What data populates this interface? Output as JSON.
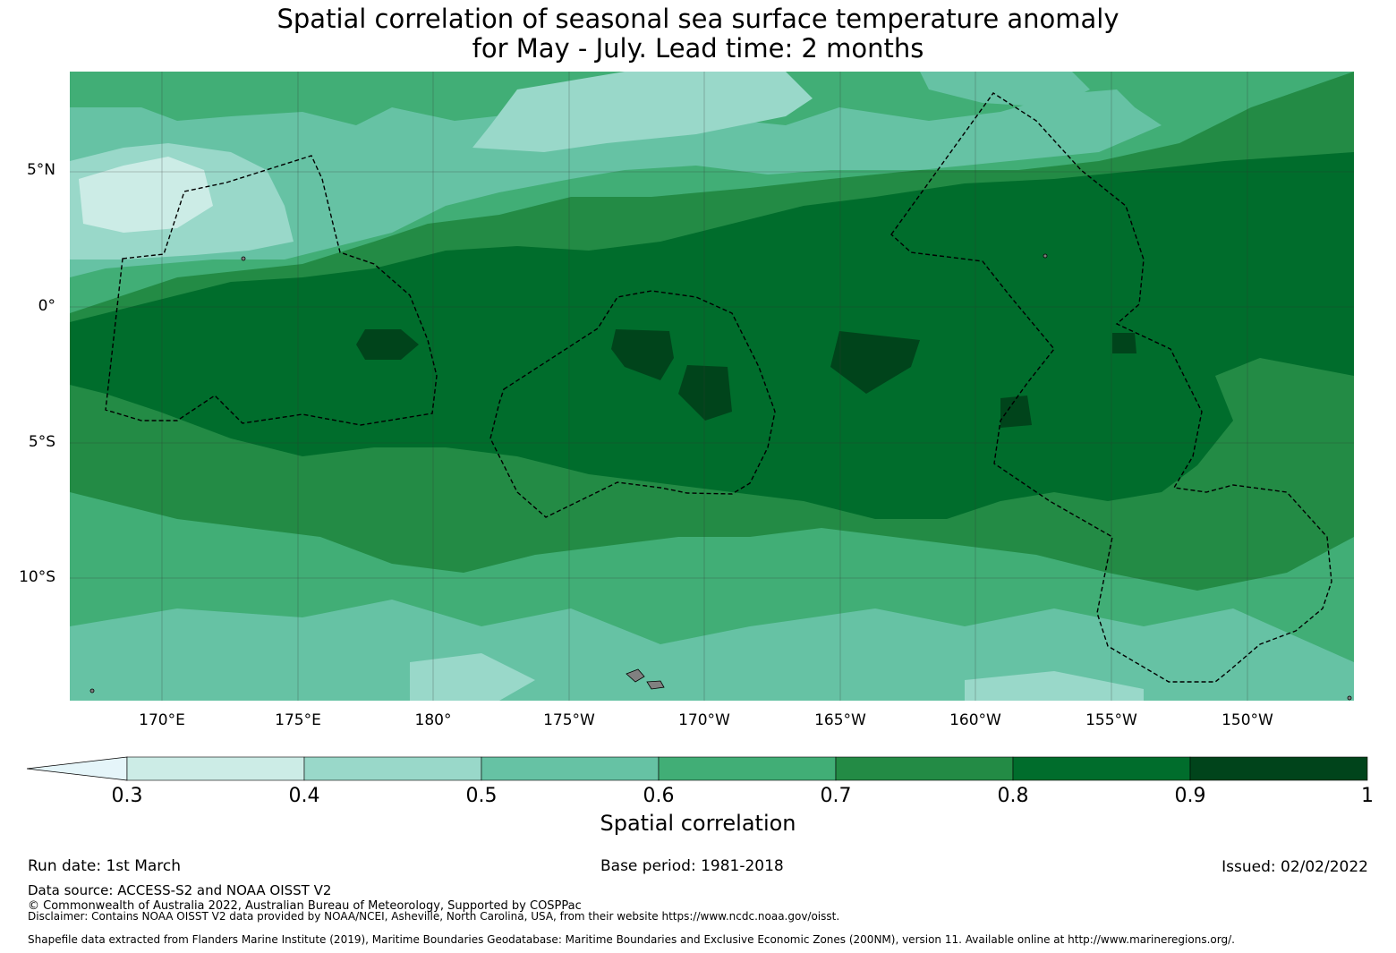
{
  "title": {
    "line1": "Spatial correlation of seasonal sea surface temperature anomaly",
    "line2": "for May - July. Lead time: 2 months"
  },
  "axes": {
    "lat_labels": [
      "5°N",
      "0°",
      "5°S",
      "10°S"
    ],
    "lon_labels": [
      "170°E",
      "175°E",
      "180°",
      "175°W",
      "170°W",
      "165°W",
      "160°W",
      "155°W",
      "150°W"
    ]
  },
  "colorbar": {
    "label": "Spatial correlation",
    "ticks": [
      "0.3",
      "0.4",
      "0.5",
      "0.6",
      "0.7",
      "0.8",
      "0.9",
      "1"
    ],
    "extend_color": "#e5f5f9",
    "colors": [
      "#ccece6",
      "#99d8c9",
      "#66c2a4",
      "#41ae76",
      "#238b45",
      "#006d2c",
      "#00441b"
    ]
  },
  "footer": {
    "run_date": "Run date: 1st March",
    "base_period": "Base period: 1981-2018",
    "issued": "Issued: 02/02/2022",
    "data_source": "Data source: ACCESS-S2 and NOAA OISST V2",
    "copyright": "© Commonwealth of Australia 2022, Australian Bureau of Meteorology, Supported by COSPPac",
    "disclaimer": "Disclaimer: Contains NOAA OISST V2 data provided by NOAA/NCEI, Asheville, North Carolina, USA, from their website https://www.ncdc.noaa.gov/oisst.",
    "shapefile": "Shapefile data extracted from Flanders Marine Institute (2019), Maritime Boundaries Geodatabase: Maritime Boundaries and Exclusive Economic Zones (200NM), version 11. Available online at http://www.marineregions.org/."
  }
}
